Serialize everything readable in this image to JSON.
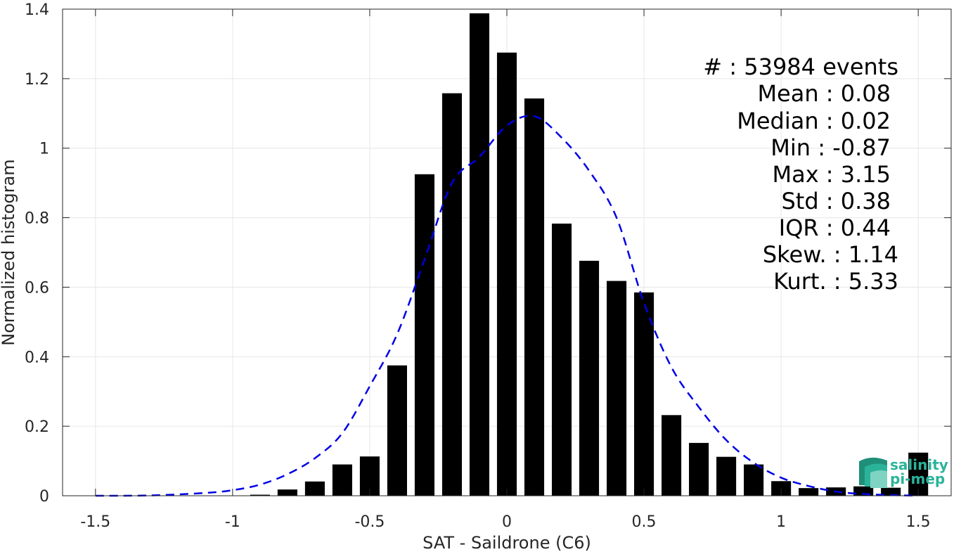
{
  "chart_data": {
    "type": "bar",
    "xlabel": "SAT - Saildrone (C6)",
    "ylabel": "Normalized histogram",
    "xlim": [
      -1.62,
      1.62
    ],
    "ylim": [
      0,
      1.4
    ],
    "xticks": [
      -1.5,
      -1,
      -0.5,
      0,
      0.5,
      1,
      1.5
    ],
    "xtick_labels": [
      "-1.5",
      "-1",
      "-0.5",
      "0",
      "0.5",
      "1",
      "1.5"
    ],
    "yticks": [
      0,
      0.2,
      0.4,
      0.6,
      0.8,
      1,
      1.2,
      1.4
    ],
    "ytick_labels": [
      "0",
      "0.2",
      "0.4",
      "0.6",
      "0.8",
      "1",
      "1.2",
      "1.4"
    ],
    "grid": true,
    "bar_color": "#000000",
    "series": [
      {
        "type": "bar",
        "x": [
          -0.9,
          -0.8,
          -0.7,
          -0.6,
          -0.5,
          -0.4,
          -0.3,
          -0.2,
          -0.1,
          0.0,
          0.1,
          0.2,
          0.3,
          0.4,
          0.5,
          0.6,
          0.7,
          0.8,
          0.9,
          1.0,
          1.1,
          1.2,
          1.3,
          1.4,
          1.5
        ],
        "values": [
          0.003,
          0.018,
          0.041,
          0.09,
          0.113,
          0.375,
          0.925,
          1.158,
          1.388,
          1.275,
          1.143,
          0.783,
          0.676,
          0.618,
          0.585,
          0.232,
          0.152,
          0.112,
          0.09,
          0.042,
          0.022,
          0.024,
          0.027,
          0.023,
          0.124
        ]
      },
      {
        "type": "line",
        "style": "dashed",
        "color": "#0000e6",
        "x": [
          -1.5,
          -1.3,
          -1.1,
          -1.0,
          -0.9,
          -0.8,
          -0.7,
          -0.6,
          -0.5,
          -0.4,
          -0.3,
          -0.2,
          -0.1,
          0.0,
          0.1,
          0.2,
          0.3,
          0.4,
          0.5,
          0.6,
          0.7,
          0.8,
          0.9,
          1.0,
          1.1,
          1.2,
          1.3,
          1.4,
          1.5
        ],
        "values": [
          0.0,
          0.001,
          0.008,
          0.016,
          0.032,
          0.062,
          0.108,
          0.18,
          0.315,
          0.465,
          0.68,
          0.9,
          0.975,
          1.065,
          1.092,
          1.03,
          0.935,
          0.8,
          0.555,
          0.37,
          0.255,
          0.16,
          0.095,
          0.052,
          0.028,
          0.012,
          0.005,
          0.002,
          0.0
        ]
      }
    ],
    "annotations": [
      "#  : 53984 events",
      "Mean : 0.08",
      "Median : 0.02",
      "Min : -0.87",
      "Max : 3.15",
      "Std : 0.38",
      "IQR : 0.44",
      "Skew. : 1.14",
      "Kurt. : 5.33"
    ],
    "annotation_placement": "top-right"
  },
  "logo": {
    "line1": "salinity",
    "line2": "pi-mep",
    "color": "#2bb39a"
  }
}
